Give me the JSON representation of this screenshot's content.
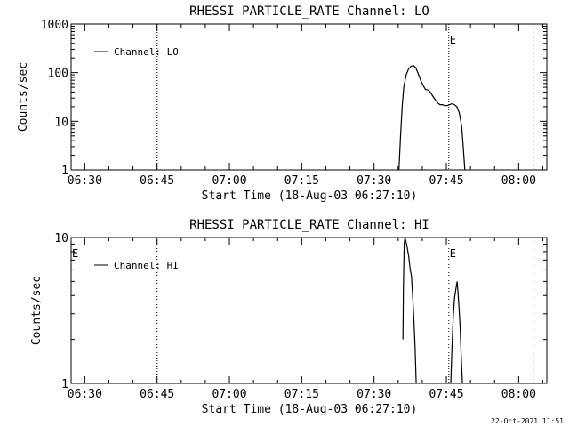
{
  "footer": {
    "timestamp": "22-Oct-2021 11:51"
  },
  "chart_data": [
    {
      "type": "line",
      "title": "RHESSI PARTICLE_RATE Channel: LO",
      "xlabel": "Start Time (18-Aug-03 06:27:10)",
      "ylabel": "Counts/sec",
      "yscale": "log",
      "ylim": [
        1,
        1000
      ],
      "y_ticks": [
        1,
        10,
        100,
        1000
      ],
      "y_tick_labels": [
        "1",
        "10",
        "100",
        "1000"
      ],
      "x_ticks": [
        "06:30",
        "06:45",
        "07:00",
        "07:15",
        "07:30",
        "07:45",
        "08:00"
      ],
      "legend": {
        "label": "Channel: LO",
        "position": "top-left"
      },
      "markers": [
        {
          "time": "06:45:00",
          "label": ""
        },
        {
          "time": "07:45:30",
          "label": "E"
        },
        {
          "time": "08:03:00",
          "label": ""
        }
      ],
      "series": [
        {
          "name": "Channel: LO",
          "segments": [
            [
              [
                "07:35:10",
                1
              ],
              [
                "07:35:30",
                5
              ],
              [
                "07:35:50",
                20
              ],
              [
                "07:36:10",
                50
              ],
              [
                "07:36:40",
                90
              ],
              [
                "07:37:10",
                120
              ],
              [
                "07:37:40",
                135
              ],
              [
                "07:38:10",
                140
              ],
              [
                "07:38:40",
                125
              ],
              [
                "07:39:10",
                95
              ],
              [
                "07:39:40",
                70
              ],
              [
                "07:40:10",
                55
              ],
              [
                "07:40:40",
                45
              ],
              [
                "07:41:10",
                44
              ],
              [
                "07:41:40",
                40
              ],
              [
                "07:42:10",
                33
              ],
              [
                "07:42:40",
                28
              ],
              [
                "07:43:10",
                24
              ],
              [
                "07:43:40",
                22
              ],
              [
                "07:44:10",
                22
              ],
              [
                "07:44:40",
                21
              ],
              [
                "07:45:10",
                21
              ],
              [
                "07:45:40",
                22
              ],
              [
                "07:46:10",
                23
              ],
              [
                "07:46:40",
                22
              ],
              [
                "07:47:10",
                20
              ],
              [
                "07:47:40",
                15
              ],
              [
                "07:48:10",
                8
              ],
              [
                "07:48:30",
                3
              ],
              [
                "07:48:50",
                1
              ]
            ]
          ]
        }
      ]
    },
    {
      "type": "line",
      "title": "RHESSI PARTICLE_RATE Channel: HI",
      "xlabel": "Start Time (18-Aug-03 06:27:10)",
      "ylabel": "Counts/sec",
      "yscale": "log",
      "ylim": [
        1,
        10
      ],
      "y_ticks": [
        1,
        10
      ],
      "y_tick_labels": [
        "1",
        "10"
      ],
      "x_ticks": [
        "06:30",
        "06:45",
        "07:00",
        "07:15",
        "07:30",
        "07:45",
        "08:00"
      ],
      "legend": {
        "label": "Channel: HI",
        "position": "top-left"
      },
      "markers": [
        {
          "time": "06:27:10",
          "label": "E"
        },
        {
          "time": "06:45:00",
          "label": ""
        },
        {
          "time": "07:45:30",
          "label": "E"
        },
        {
          "time": "08:03:00",
          "label": ""
        }
      ],
      "series": [
        {
          "name": "Channel: HI",
          "segments": [
            [
              [
                "07:36:00",
                2.0
              ],
              [
                "07:36:05",
                4.5
              ],
              [
                "07:36:15",
                9.0
              ],
              [
                "07:36:25",
                10.0
              ],
              [
                "07:36:45",
                9.0
              ],
              [
                "07:37:10",
                7.5
              ],
              [
                "07:37:30",
                6.0
              ],
              [
                "07:37:45",
                5.5
              ],
              [
                "07:38:00",
                4.0
              ],
              [
                "07:38:15",
                2.8
              ],
              [
                "07:38:30",
                1.8
              ],
              [
                "07:38:45",
                1.0
              ]
            ],
            [
              [
                "07:45:55",
                1.0
              ],
              [
                "07:46:10",
                1.8
              ],
              [
                "07:46:25",
                2.8
              ],
              [
                "07:46:40",
                3.8
              ],
              [
                "07:47:00",
                4.5
              ],
              [
                "07:47:15",
                5.0
              ],
              [
                "07:47:25",
                4.2
              ],
              [
                "07:47:35",
                3.5
              ],
              [
                "07:47:50",
                2.5
              ],
              [
                "07:48:05",
                1.5
              ],
              [
                "07:48:20",
                1.0
              ]
            ]
          ]
        }
      ]
    }
  ]
}
